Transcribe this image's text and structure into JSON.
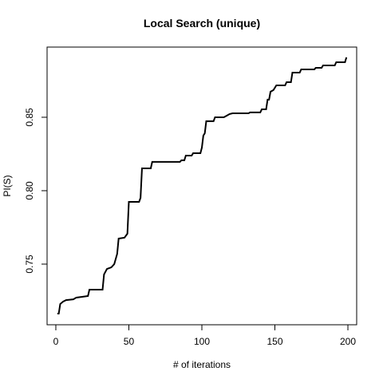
{
  "chart_data": {
    "type": "line",
    "title": "Local Search (unique)",
    "x_label": "# of iterations",
    "y_label": "PI(S)",
    "x": [
      1,
      2,
      3,
      5,
      7,
      12,
      14,
      18,
      22,
      23,
      32,
      33,
      35,
      38,
      40,
      42,
      43,
      47,
      49,
      50,
      57,
      58,
      59,
      65,
      66,
      85,
      86,
      88,
      89,
      93,
      94,
      99,
      100,
      101,
      102,
      103,
      108,
      109,
      115,
      117,
      119,
      121,
      132,
      133,
      140,
      141,
      144,
      145,
      146,
      147,
      149,
      151,
      157,
      158,
      161,
      162,
      167,
      168,
      177,
      178,
      182,
      183,
      191,
      192,
      198,
      199
    ],
    "series": [
      {
        "name": "PI(S)",
        "color": "#000000",
        "values": [
          0.7163,
          0.7163,
          0.7228,
          0.7245,
          0.7255,
          0.726,
          0.7272,
          0.7277,
          0.7283,
          0.7326,
          0.7326,
          0.743,
          0.7467,
          0.7478,
          0.75,
          0.757,
          0.7674,
          0.768,
          0.7707,
          0.7924,
          0.7924,
          0.7951,
          0.8152,
          0.8152,
          0.8196,
          0.8196,
          0.8207,
          0.8207,
          0.8239,
          0.8239,
          0.8255,
          0.8255,
          0.8293,
          0.8375,
          0.8391,
          0.8473,
          0.8473,
          0.85,
          0.85,
          0.8511,
          0.8522,
          0.8527,
          0.8527,
          0.8533,
          0.8533,
          0.8554,
          0.8554,
          0.862,
          0.862,
          0.8674,
          0.8685,
          0.8717,
          0.8717,
          0.8739,
          0.8739,
          0.8804,
          0.8804,
          0.8826,
          0.8826,
          0.8837,
          0.8837,
          0.8853,
          0.8853,
          0.8875,
          0.8875,
          0.8908
        ]
      }
    ],
    "xlim": [
      -6,
      206
    ],
    "ylim": [
      0.7087,
      0.8978
    ],
    "xticks": [
      0,
      50,
      100,
      150,
      200
    ],
    "yticks": [
      0.75,
      {
        "value": 0.8,
        "label": "0.80"
      },
      0.85
    ]
  }
}
